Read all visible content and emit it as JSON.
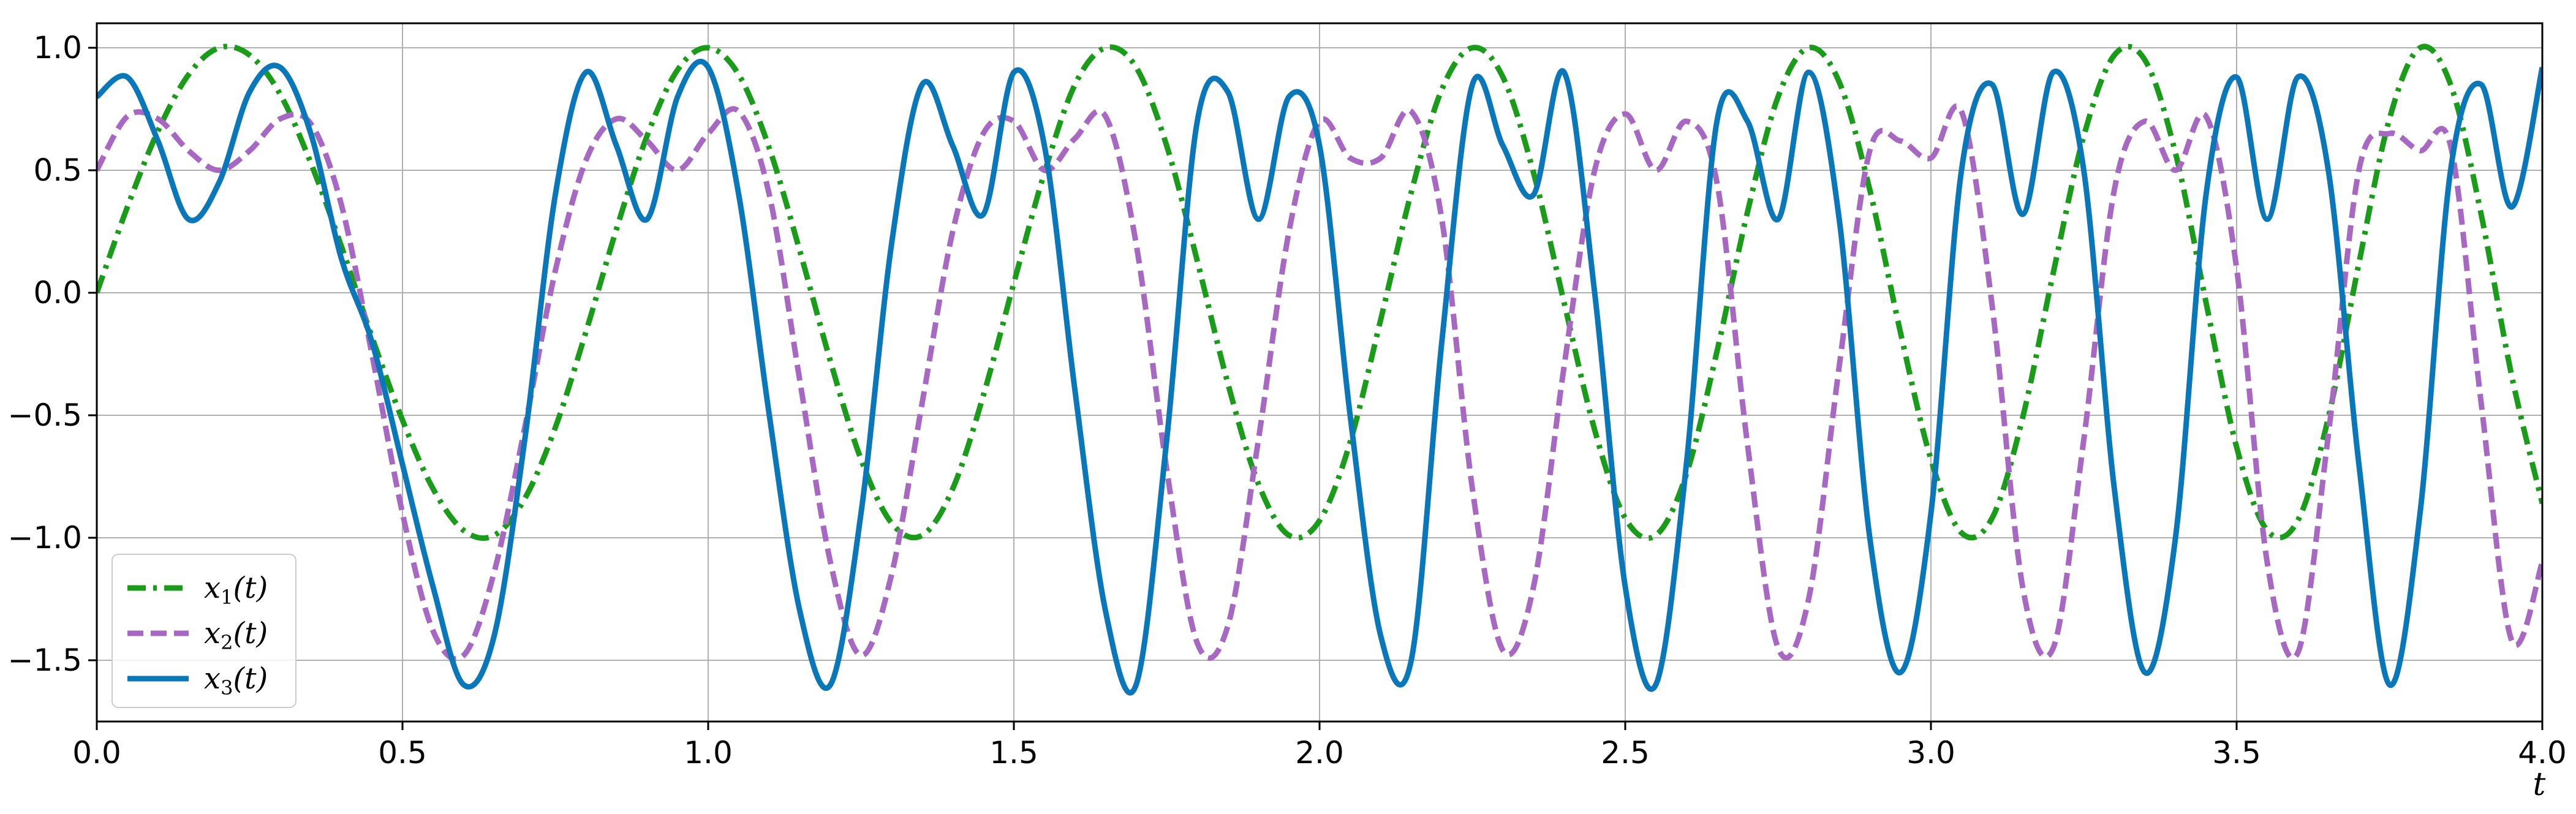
{
  "chart_data": {
    "type": "line",
    "title": "",
    "xlabel": "t",
    "ylabel": "",
    "xlim": [
      0.0,
      4.0
    ],
    "ylim": [
      -1.75,
      1.1
    ],
    "grid": true,
    "legend_position": "lower-left",
    "x_ticks": [
      0.0,
      0.5,
      1.0,
      1.5,
      2.0,
      2.5,
      3.0,
      3.5,
      4.0
    ],
    "x_tick_labels": [
      "0.0",
      "0.5",
      "1.0",
      "1.5",
      "2.0",
      "2.5",
      "3.0",
      "3.5",
      "4.0"
    ],
    "y_ticks": [
      1.0,
      0.5,
      0.0,
      -0.5,
      -1.0,
      -1.5
    ],
    "y_tick_labels": [
      "1.0",
      "0.5",
      "0.0",
      "−0.5",
      "−1.0",
      "−1.5"
    ],
    "series": [
      {
        "name": "x₁(t)",
        "name_base": "x",
        "name_sub": "1",
        "name_tail": "(t)",
        "color": "#1a9c1a",
        "style": "dashdot",
        "x": [
          0.0,
          0.05,
          0.1,
          0.15,
          0.2,
          0.25,
          0.3,
          0.35,
          0.4,
          0.45,
          0.5,
          0.55,
          0.6,
          0.65,
          0.7,
          0.75,
          0.8,
          0.85,
          0.9,
          0.95,
          1.0,
          1.05,
          1.1,
          1.15,
          1.2,
          1.25,
          1.3,
          1.35,
          1.4,
          1.45,
          1.5,
          1.55,
          1.6,
          1.65,
          1.7,
          1.75,
          1.8,
          1.85,
          1.9,
          1.95,
          2.0,
          2.05,
          2.1,
          2.15,
          2.2,
          2.25,
          2.3,
          2.35,
          2.4,
          2.45,
          2.5,
          2.55,
          2.6,
          2.65,
          2.7,
          2.75,
          2.8,
          2.85,
          2.9,
          2.95,
          3.0,
          3.05,
          3.1,
          3.15,
          3.2,
          3.25,
          3.3,
          3.35,
          3.4,
          3.45,
          3.5,
          3.55,
          3.6,
          3.65,
          3.7,
          3.75,
          3.8,
          3.85,
          3.9,
          3.95,
          4.0
        ],
        "values": [
          0.0,
          0.35,
          0.66,
          0.89,
          1.0,
          0.97,
          0.81,
          0.53,
          0.19,
          -0.18,
          -0.52,
          -0.8,
          -0.97,
          -0.99,
          -0.84,
          -0.55,
          -0.16,
          0.26,
          0.64,
          0.91,
          1.0,
          0.89,
          0.59,
          0.17,
          -0.28,
          -0.68,
          -0.94,
          -0.99,
          -0.8,
          -0.42,
          0.04,
          0.49,
          0.85,
          1.0,
          0.92,
          0.6,
          0.13,
          -0.37,
          -0.78,
          -0.99,
          -0.93,
          -0.61,
          -0.11,
          0.41,
          0.83,
          1.0,
          0.88,
          0.49,
          -0.04,
          -0.56,
          -0.92,
          -0.99,
          -0.74,
          -0.24,
          0.33,
          0.8,
          1.0,
          0.86,
          0.42,
          -0.16,
          -0.68,
          -0.98,
          -0.92,
          -0.51,
          0.08,
          0.64,
          0.97,
          0.95,
          0.57,
          -0.04,
          -0.63,
          -0.97,
          -0.93,
          -0.51,
          0.12,
          0.71,
          1.0,
          0.85,
          0.32,
          -0.34,
          -0.86
        ]
      },
      {
        "name": "x₂(t)",
        "name_base": "x",
        "name_sub": "2",
        "name_tail": "(t)",
        "color": "#a768c2",
        "style": "dashed",
        "x": [
          0.0,
          0.05,
          0.1,
          0.15,
          0.2,
          0.25,
          0.3,
          0.35,
          0.4,
          0.45,
          0.5,
          0.55,
          0.6,
          0.65,
          0.7,
          0.75,
          0.8,
          0.85,
          0.9,
          0.95,
          1.0,
          1.05,
          1.1,
          1.15,
          1.2,
          1.25,
          1.3,
          1.35,
          1.4,
          1.45,
          1.5,
          1.55,
          1.6,
          1.65,
          1.7,
          1.75,
          1.8,
          1.85,
          1.9,
          1.95,
          2.0,
          2.05,
          2.1,
          2.15,
          2.2,
          2.25,
          2.3,
          2.35,
          2.4,
          2.45,
          2.5,
          2.55,
          2.6,
          2.65,
          2.7,
          2.75,
          2.8,
          2.85,
          2.9,
          2.95,
          3.0,
          3.05,
          3.1,
          3.15,
          3.2,
          3.25,
          3.3,
          3.35,
          3.4,
          3.45,
          3.5,
          3.55,
          3.6,
          3.65,
          3.7,
          3.75,
          3.8,
          3.85,
          3.9,
          3.95,
          4.0
        ],
        "values": [
          0.5,
          0.72,
          0.71,
          0.58,
          0.5,
          0.58,
          0.71,
          0.69,
          0.36,
          -0.25,
          -0.9,
          -1.38,
          -1.48,
          -1.14,
          -0.55,
          0.09,
          0.54,
          0.71,
          0.62,
          0.5,
          0.65,
          0.74,
          0.4,
          -0.36,
          -1.1,
          -1.48,
          -1.15,
          -0.45,
          0.25,
          0.65,
          0.7,
          0.5,
          0.63,
          0.72,
          0.2,
          -0.72,
          -1.43,
          -1.36,
          -0.6,
          0.25,
          0.7,
          0.55,
          0.55,
          0.74,
          0.3,
          -0.8,
          -1.46,
          -1.2,
          -0.3,
          0.5,
          0.73,
          0.5,
          0.7,
          0.45,
          -0.62,
          -1.45,
          -1.25,
          -0.3,
          0.58,
          0.62,
          0.55,
          0.74,
          -0.05,
          -1.2,
          -1.45,
          -0.6,
          0.42,
          0.7,
          0.5,
          0.72,
          0.1,
          -1.1,
          -1.47,
          -0.58,
          0.5,
          0.65,
          0.58,
          0.6,
          -0.45,
          -1.42,
          -1.1
        ]
      },
      {
        "name": "x₃(t)",
        "name_base": "x",
        "name_sub": "3",
        "name_tail": "(t)",
        "color": "#0a77b8",
        "style": "solid",
        "x": [
          0.0,
          0.05,
          0.1,
          0.15,
          0.2,
          0.25,
          0.3,
          0.35,
          0.4,
          0.45,
          0.5,
          0.55,
          0.6,
          0.65,
          0.7,
          0.75,
          0.8,
          0.85,
          0.9,
          0.95,
          1.0,
          1.05,
          1.1,
          1.15,
          1.2,
          1.25,
          1.3,
          1.35,
          1.4,
          1.45,
          1.5,
          1.55,
          1.6,
          1.65,
          1.7,
          1.75,
          1.8,
          1.85,
          1.9,
          1.95,
          2.0,
          2.05,
          2.1,
          2.15,
          2.2,
          2.25,
          2.3,
          2.35,
          2.4,
          2.45,
          2.5,
          2.55,
          2.6,
          2.65,
          2.7,
          2.75,
          2.8,
          2.85,
          2.9,
          2.95,
          3.0,
          3.05,
          3.1,
          3.15,
          3.2,
          3.25,
          3.3,
          3.35,
          3.4,
          3.45,
          3.5,
          3.55,
          3.6,
          3.65,
          3.7,
          3.75,
          3.8,
          3.85,
          3.9,
          3.95,
          4.0
        ],
        "values": [
          0.8,
          0.88,
          0.62,
          0.3,
          0.45,
          0.82,
          0.92,
          0.65,
          0.14,
          -0.2,
          -0.7,
          -1.2,
          -1.6,
          -1.4,
          -0.6,
          0.4,
          0.9,
          0.6,
          0.3,
          0.8,
          0.92,
          0.4,
          -0.5,
          -1.3,
          -1.6,
          -0.9,
          0.2,
          0.85,
          0.6,
          0.32,
          0.9,
          0.6,
          -0.4,
          -1.3,
          -1.6,
          -0.6,
          0.7,
          0.82,
          0.3,
          0.8,
          0.6,
          -0.5,
          -1.4,
          -1.5,
          -0.2,
          0.85,
          0.6,
          0.4,
          0.9,
          0.0,
          -1.2,
          -1.6,
          -0.7,
          0.7,
          0.7,
          0.3,
          0.9,
          0.3,
          -1.0,
          -1.55,
          -0.9,
          0.5,
          0.85,
          0.32,
          0.9,
          0.5,
          -0.8,
          -1.55,
          -1.0,
          0.4,
          0.88,
          0.3,
          0.88,
          0.5,
          -0.7,
          -1.6,
          -0.9,
          0.5,
          0.85,
          0.35,
          0.92
        ]
      }
    ]
  }
}
